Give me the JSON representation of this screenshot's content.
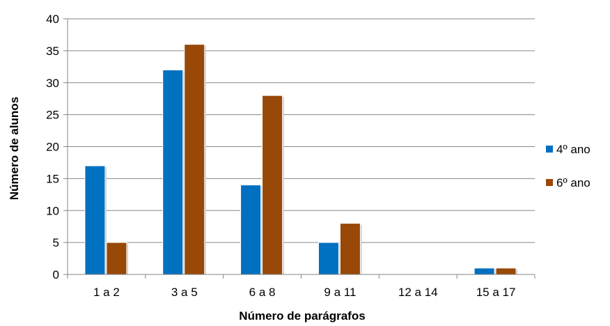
{
  "chart_data": {
    "type": "bar",
    "categories": [
      "1 a 2",
      "3 a 5",
      "6 a 8",
      "9 a 11",
      "12 a 14",
      "15 a 17"
    ],
    "series": [
      {
        "name": "4º ano",
        "color": "#0070C0",
        "values": [
          17,
          32,
          14,
          5,
          0,
          1
        ]
      },
      {
        "name": "6º ano",
        "color": "#984807",
        "values": [
          5,
          36,
          28,
          8,
          0,
          1
        ]
      }
    ],
    "title": "",
    "xlabel": "Número de parágrafos",
    "ylabel": "Número de alunos",
    "ylim": [
      0,
      40
    ],
    "yticks": [
      "0",
      "5",
      "10",
      "15",
      "20",
      "25",
      "30",
      "35",
      "40"
    ],
    "grid": true,
    "legend": "right"
  }
}
